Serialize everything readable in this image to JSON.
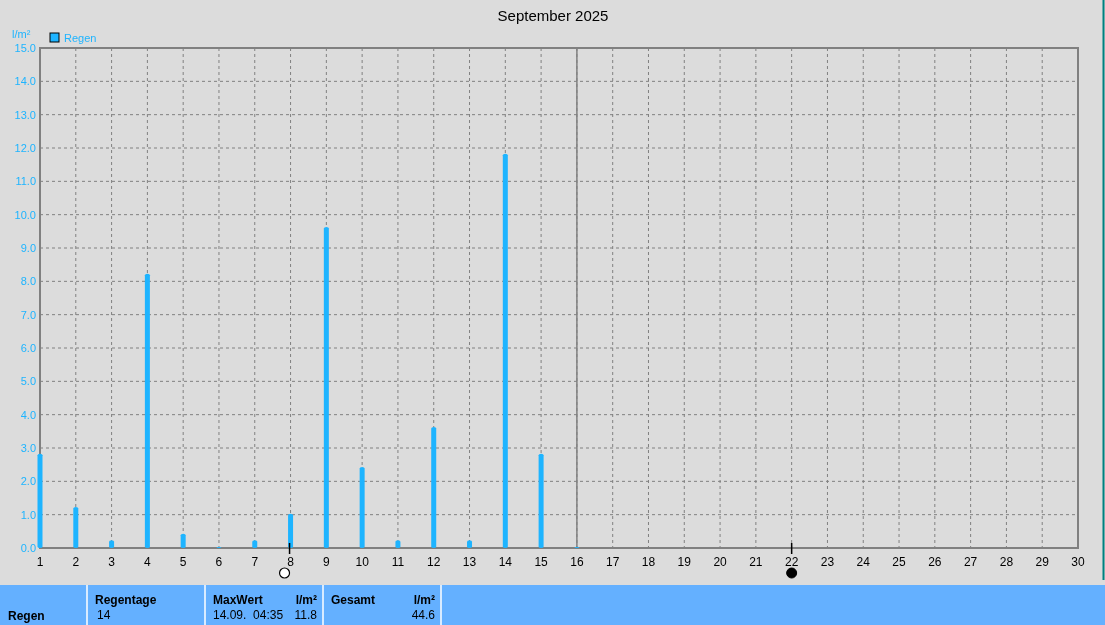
{
  "chart_data": {
    "type": "bar",
    "title": "September 2025",
    "ylabel": "l/m²",
    "x": [
      1,
      2,
      3,
      4,
      5,
      6,
      7,
      8,
      9,
      10,
      11,
      12,
      13,
      14,
      15,
      16
    ],
    "series": [
      {
        "name": "Regen",
        "color": "#1eb4ff",
        "values": [
          2.8,
          1.2,
          0.2,
          8.2,
          0.4,
          0,
          0.2,
          1.0,
          9.6,
          2.4,
          0.2,
          3.6,
          0.2,
          11.8,
          2.8,
          0
        ]
      }
    ],
    "xlim": [
      1,
      30
    ],
    "xticks": [
      1,
      2,
      3,
      4,
      5,
      6,
      7,
      8,
      9,
      10,
      11,
      12,
      13,
      14,
      15,
      16,
      17,
      18,
      19,
      20,
      21,
      22,
      23,
      24,
      25,
      26,
      27,
      28,
      29,
      30
    ],
    "ylim": [
      0,
      15
    ],
    "yticks": [
      {
        "value": 0,
        "label": "0.0"
      },
      {
        "value": 1,
        "label": "1.0"
      },
      {
        "value": 2,
        "label": "2.0"
      },
      {
        "value": 3,
        "label": "3.0"
      },
      {
        "value": 4,
        "label": "4.0"
      },
      {
        "value": 5,
        "label": "5.0"
      },
      {
        "value": 6,
        "label": "6.0"
      },
      {
        "value": 7,
        "label": "7.0"
      },
      {
        "value": 8,
        "label": "8.0"
      },
      {
        "value": 9,
        "label": "9.0"
      },
      {
        "value": 10,
        "label": "10.0"
      },
      {
        "value": 11,
        "label": "11.0"
      },
      {
        "value": 12,
        "label": "12.0"
      },
      {
        "value": 13,
        "label": "13.0"
      },
      {
        "value": 14,
        "label": "14.0"
      },
      {
        "value": 15,
        "label": "15.0"
      }
    ],
    "ref_lines": [
      {
        "axis": "x",
        "value": 16,
        "color": "#808080"
      }
    ],
    "grid": true,
    "legend": "top left",
    "annotations": [
      "Regen",
      "Regentage",
      "14",
      "MaxWert",
      "l/m²",
      "14.09.  04:35",
      "11.8",
      "Gesamt",
      "l/m²",
      "44.6"
    ]
  }
}
